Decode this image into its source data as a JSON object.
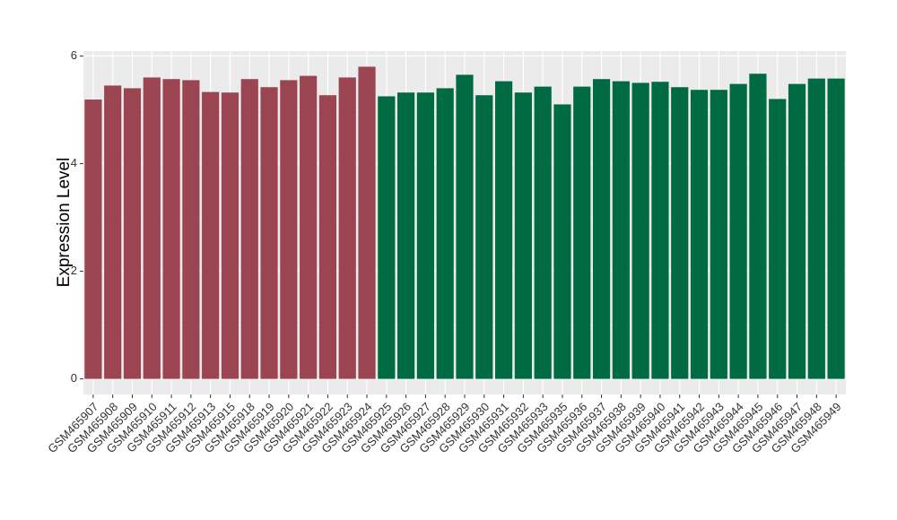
{
  "chart_data": {
    "type": "bar",
    "y_label": "Expression Level",
    "categories": [
      "GSM465907",
      "GSM465908",
      "GSM465909",
      "GSM465910",
      "GSM465911",
      "GSM465912",
      "GSM465913",
      "GSM465915",
      "GSM465918",
      "GSM465919",
      "GSM465920",
      "GSM465921",
      "GSM465922",
      "GSM465923",
      "GSM465924",
      "GSM465925",
      "GSM465926",
      "GSM465927",
      "GSM465928",
      "GSM465929",
      "GSM465930",
      "GSM465931",
      "GSM465932",
      "GSM465933",
      "GSM465935",
      "GSM465936",
      "GSM465937",
      "GSM465938",
      "GSM465939",
      "GSM465940",
      "GSM465941",
      "GSM465942",
      "GSM465943",
      "GSM465944",
      "GSM465945",
      "GSM465946",
      "GSM465947",
      "GSM465948",
      "GSM465949"
    ],
    "values": [
      5.19,
      5.45,
      5.4,
      5.6,
      5.57,
      5.55,
      5.33,
      5.32,
      5.57,
      5.42,
      5.55,
      5.63,
      5.27,
      5.6,
      5.8,
      5.25,
      5.32,
      5.32,
      5.4,
      5.65,
      5.27,
      5.53,
      5.32,
      5.43,
      5.1,
      5.43,
      5.57,
      5.53,
      5.5,
      5.52,
      5.42,
      5.37,
      5.37,
      5.48,
      5.67,
      5.2,
      5.48,
      5.58,
      5.58
    ],
    "colors": [
      "#9b4452",
      "#9b4452",
      "#9b4452",
      "#9b4452",
      "#9b4452",
      "#9b4452",
      "#9b4452",
      "#9b4452",
      "#9b4452",
      "#9b4452",
      "#9b4452",
      "#9b4452",
      "#9b4452",
      "#9b4452",
      "#9b4452",
      "#006a43",
      "#006a43",
      "#006a43",
      "#006a43",
      "#006a43",
      "#006a43",
      "#006a43",
      "#006a43",
      "#006a43",
      "#006a43",
      "#006a43",
      "#006a43",
      "#006a43",
      "#006a43",
      "#006a43",
      "#006a43",
      "#006a43",
      "#006a43",
      "#006a43",
      "#006a43",
      "#006a43",
      "#006a43",
      "#006a43",
      "#006a43"
    ],
    "ylim": [
      -0.29,
      6.09
    ],
    "yticks": [
      0,
      2,
      4,
      6
    ],
    "grid": true
  }
}
